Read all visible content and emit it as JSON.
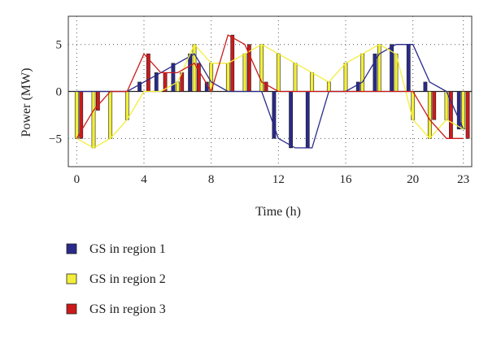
{
  "chart_data": {
    "type": "bar",
    "title": "",
    "xlabel": "Time (h)",
    "ylabel": "Power (MW)",
    "xlim": [
      -0.5,
      23.5
    ],
    "ylim": [
      -8,
      8
    ],
    "xticks": [
      0,
      4,
      8,
      12,
      16,
      20,
      23
    ],
    "yticks": [
      -5,
      0,
      5
    ],
    "grid": true,
    "legend_position": "bottom-left",
    "x": [
      0,
      1,
      2,
      3,
      4,
      5,
      6,
      7,
      8,
      9,
      10,
      11,
      12,
      13,
      14,
      15,
      16,
      17,
      18,
      19,
      20,
      21,
      22,
      23
    ],
    "series": [
      {
        "name": "GS in region 1",
        "color": "#2a2a8a",
        "values": [
          0,
          0,
          0,
          0,
          1,
          2,
          3,
          4,
          1,
          0,
          0,
          0,
          -5,
          -6,
          -6,
          0,
          0,
          1,
          4,
          5,
          5,
          1,
          0,
          -4
        ]
      },
      {
        "name": "GS in region 2",
        "color": "#f2ee3a",
        "values": [
          -5,
          -6,
          -5,
          -3,
          0,
          0,
          1,
          5,
          3,
          3,
          4,
          5,
          4,
          3,
          2,
          1,
          3,
          4,
          5,
          4,
          -3,
          -5,
          -3,
          -4
        ]
      },
      {
        "name": "GS in region 3",
        "color": "#cc1a1a",
        "values": [
          -5,
          -2,
          0,
          0,
          4,
          2,
          2,
          3,
          0,
          6,
          5,
          1,
          0,
          0,
          0,
          0,
          0,
          0,
          0,
          0,
          0,
          -3,
          -5,
          -5
        ]
      }
    ]
  }
}
